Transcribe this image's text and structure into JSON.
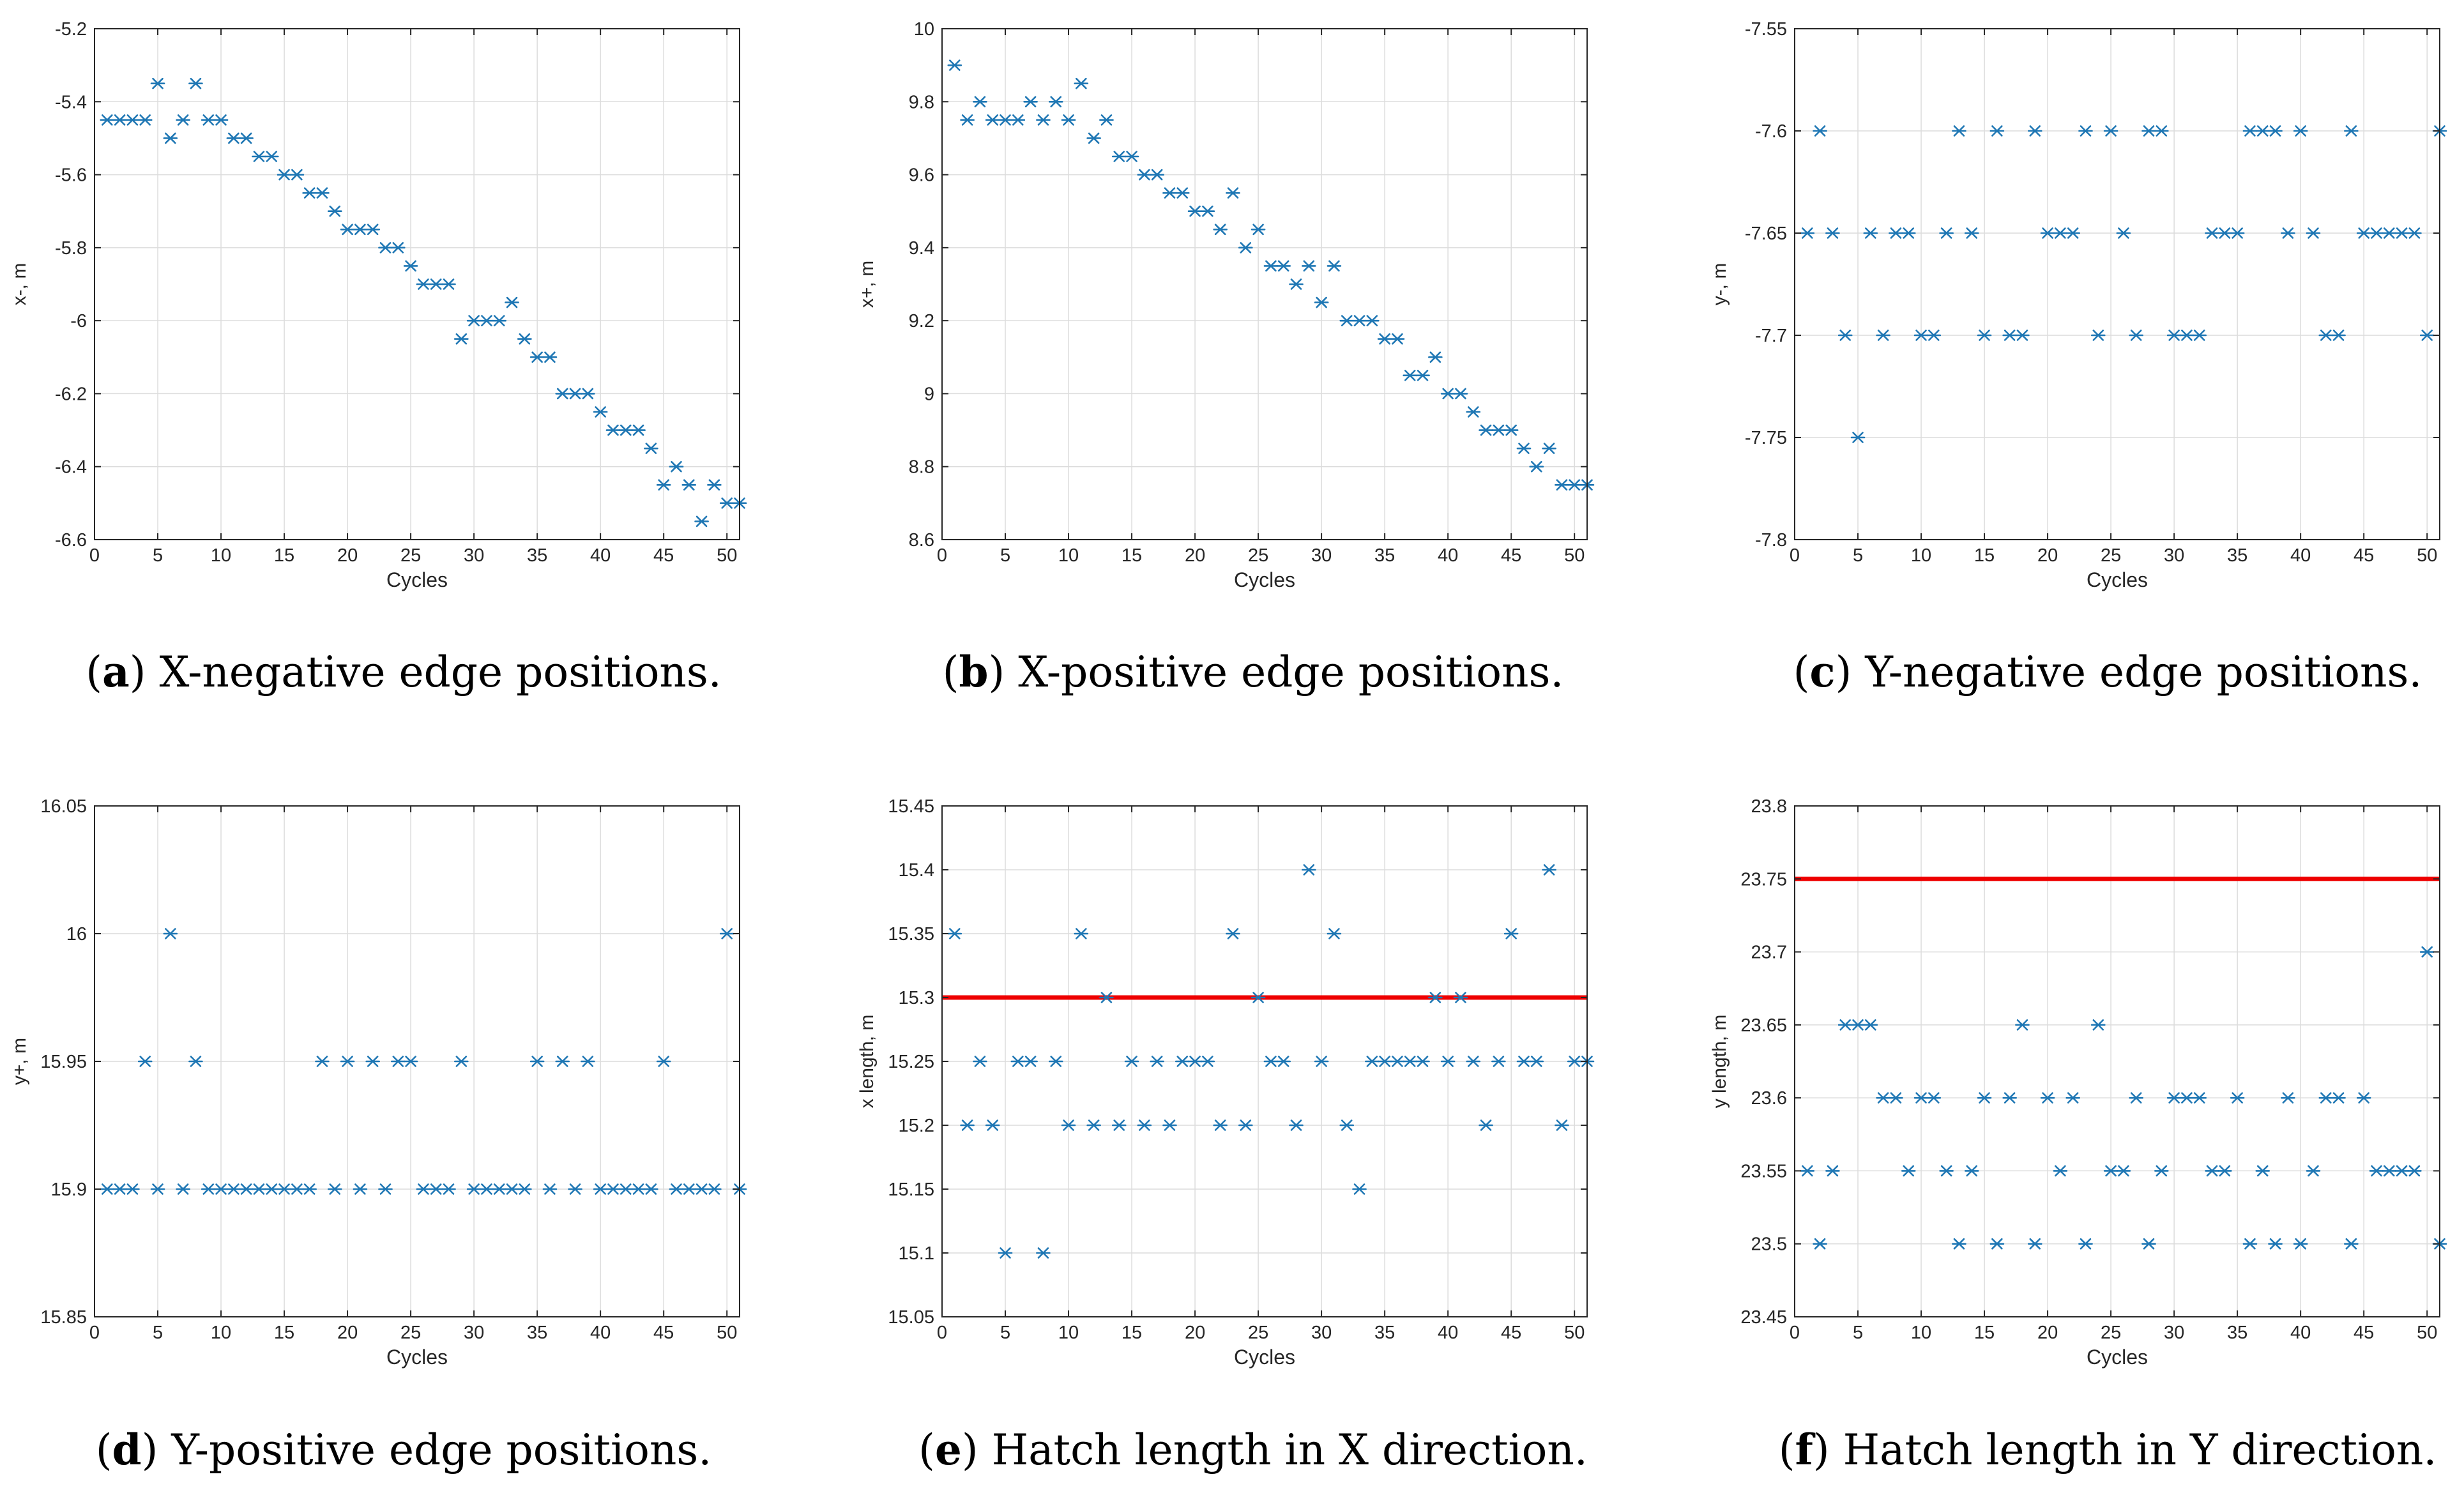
{
  "figure": {
    "colors": {
      "marker": "#1f77b4",
      "ref_line": "#ee0000",
      "grid": "#dcdcdc",
      "axes": "#262626",
      "background": "#ffffff"
    },
    "marker_symbol": "asterisk"
  },
  "chart_data": [
    {
      "type": "scatter",
      "panel": "a",
      "caption_letter": "a",
      "caption_text": ") X-negative edge positions.",
      "caption_open": "(",
      "xlabel": "Cycles",
      "ylabel": "x-, m",
      "xlim": [
        0,
        51
      ],
      "ylim": [
        -6.6,
        -5.2
      ],
      "xticks": [
        0,
        5,
        10,
        15,
        20,
        25,
        30,
        35,
        40,
        45,
        50
      ],
      "yticks": [
        -6.6,
        -6.4,
        -6.2,
        -6,
        -5.8,
        -5.6,
        -5.4,
        -5.2
      ],
      "yticklabels": [
        "-6.6",
        "-6.4",
        "-6.2",
        "-6",
        "-5.8",
        "-5.6",
        "-5.4",
        "-5.2"
      ],
      "x": [
        1,
        2,
        3,
        4,
        5,
        6,
        7,
        8,
        9,
        10,
        11,
        12,
        13,
        14,
        15,
        16,
        17,
        18,
        19,
        20,
        21,
        22,
        23,
        24,
        25,
        26,
        27,
        28,
        29,
        30,
        31,
        32,
        33,
        34,
        35,
        36,
        37,
        38,
        39,
        40,
        41,
        42,
        43,
        44,
        45,
        46,
        47,
        48,
        49,
        50,
        51
      ],
      "y": [
        -5.45,
        -5.45,
        -5.45,
        -5.45,
        -5.35,
        -5.5,
        -5.45,
        -5.35,
        -5.45,
        -5.45,
        -5.5,
        -5.5,
        -5.55,
        -5.55,
        -5.6,
        -5.6,
        -5.65,
        -5.65,
        -5.7,
        -5.75,
        -5.75,
        -5.75,
        -5.8,
        -5.8,
        -5.85,
        -5.9,
        -5.9,
        -5.9,
        -6.05,
        -6.0,
        -6.0,
        -6.0,
        -5.95,
        -6.05,
        -6.1,
        -6.1,
        -6.2,
        -6.2,
        -6.2,
        -6.25,
        -6.3,
        -6.3,
        -6.3,
        -6.35,
        -6.45,
        -6.4,
        -6.45,
        -6.55,
        -6.45,
        -6.5,
        -6.5
      ],
      "reference_line": null
    },
    {
      "type": "scatter",
      "panel": "b",
      "caption_letter": "b",
      "caption_text": ") X-positive edge positions.",
      "caption_open": "(",
      "xlabel": "Cycles",
      "ylabel": "x+, m",
      "xlim": [
        0,
        51
      ],
      "ylim": [
        8.6,
        10
      ],
      "xticks": [
        0,
        5,
        10,
        15,
        20,
        25,
        30,
        35,
        40,
        45,
        50
      ],
      "yticks": [
        8.6,
        8.8,
        9,
        9.2,
        9.4,
        9.6,
        9.8,
        10
      ],
      "yticklabels": [
        "8.6",
        "8.8",
        "9",
        "9.2",
        "9.4",
        "9.6",
        "9.8",
        "10"
      ],
      "x": [
        1,
        2,
        3,
        4,
        5,
        6,
        7,
        8,
        9,
        10,
        11,
        12,
        13,
        14,
        15,
        16,
        17,
        18,
        19,
        20,
        21,
        22,
        23,
        24,
        25,
        26,
        27,
        28,
        29,
        30,
        31,
        32,
        33,
        34,
        35,
        36,
        37,
        38,
        39,
        40,
        41,
        42,
        43,
        44,
        45,
        46,
        47,
        48,
        49,
        50,
        51
      ],
      "y": [
        9.9,
        9.75,
        9.8,
        9.75,
        9.75,
        9.75,
        9.8,
        9.75,
        9.8,
        9.75,
        9.85,
        9.7,
        9.75,
        9.65,
        9.65,
        9.6,
        9.6,
        9.55,
        9.55,
        9.5,
        9.5,
        9.45,
        9.55,
        9.4,
        9.45,
        9.35,
        9.35,
        9.3,
        9.35,
        9.25,
        9.35,
        9.2,
        9.2,
        9.2,
        9.15,
        9.15,
        9.05,
        9.05,
        9.1,
        9.0,
        9.0,
        8.95,
        8.9,
        8.9,
        8.9,
        8.85,
        8.8,
        8.85,
        8.75,
        8.75,
        8.75
      ],
      "reference_line": null
    },
    {
      "type": "scatter",
      "panel": "c",
      "caption_letter": "c",
      "caption_text": ") Y-negative edge positions.",
      "caption_open": "(",
      "xlabel": "Cycles",
      "ylabel": "y-, m",
      "xlim": [
        0,
        51
      ],
      "ylim": [
        -7.8,
        -7.55
      ],
      "xticks": [
        0,
        5,
        10,
        15,
        20,
        25,
        30,
        35,
        40,
        45,
        50
      ],
      "yticks": [
        -7.8,
        -7.75,
        -7.7,
        -7.65,
        -7.6,
        -7.55
      ],
      "yticklabels": [
        "-7.8",
        "-7.75",
        "-7.7",
        "-7.65",
        "-7.6",
        "-7.55"
      ],
      "x": [
        1,
        2,
        3,
        4,
        5,
        6,
        7,
        8,
        9,
        10,
        11,
        12,
        13,
        14,
        15,
        16,
        17,
        18,
        19,
        20,
        21,
        22,
        23,
        24,
        25,
        26,
        27,
        28,
        29,
        30,
        31,
        32,
        33,
        34,
        35,
        36,
        37,
        38,
        39,
        40,
        41,
        42,
        43,
        44,
        45,
        46,
        47,
        48,
        49,
        50,
        51
      ],
      "y": [
        -7.65,
        -7.6,
        -7.65,
        -7.7,
        -7.75,
        -7.65,
        -7.7,
        -7.65,
        -7.65,
        -7.7,
        -7.7,
        -7.65,
        -7.6,
        -7.65,
        -7.7,
        -7.6,
        -7.7,
        -7.7,
        -7.6,
        -7.65,
        -7.65,
        -7.65,
        -7.6,
        -7.7,
        -7.6,
        -7.65,
        -7.7,
        -7.6,
        -7.6,
        -7.7,
        -7.7,
        -7.7,
        -7.65,
        -7.65,
        -7.65,
        -7.6,
        -7.6,
        -7.6,
        -7.65,
        -7.6,
        -7.65,
        -7.7,
        -7.7,
        -7.6,
        -7.65,
        -7.65,
        -7.65,
        -7.65,
        -7.65,
        -7.7,
        -7.6
      ],
      "reference_line": null
    },
    {
      "type": "scatter",
      "panel": "d",
      "caption_letter": "d",
      "caption_text": ") Y-positive edge positions.",
      "caption_open": "(",
      "xlabel": "Cycles",
      "ylabel": "y+, m",
      "xlim": [
        0,
        51
      ],
      "ylim": [
        15.85,
        16.05
      ],
      "xticks": [
        0,
        5,
        10,
        15,
        20,
        25,
        30,
        35,
        40,
        45,
        50
      ],
      "yticks": [
        15.85,
        15.9,
        15.95,
        16,
        16.05
      ],
      "yticklabels": [
        "15.85",
        "15.9",
        "15.95",
        "16",
        "16.05"
      ],
      "x": [
        1,
        2,
        3,
        4,
        5,
        6,
        7,
        8,
        9,
        10,
        11,
        12,
        13,
        14,
        15,
        16,
        17,
        18,
        19,
        20,
        21,
        22,
        23,
        24,
        25,
        26,
        27,
        28,
        29,
        30,
        31,
        32,
        33,
        34,
        35,
        36,
        37,
        38,
        39,
        40,
        41,
        42,
        43,
        44,
        45,
        46,
        47,
        48,
        49,
        50,
        51
      ],
      "y": [
        15.9,
        15.9,
        15.9,
        15.95,
        15.9,
        16.0,
        15.9,
        15.95,
        15.9,
        15.9,
        15.9,
        15.9,
        15.9,
        15.9,
        15.9,
        15.9,
        15.9,
        15.95,
        15.9,
        15.95,
        15.9,
        15.95,
        15.9,
        15.95,
        15.95,
        15.9,
        15.9,
        15.9,
        15.95,
        15.9,
        15.9,
        15.9,
        15.9,
        15.9,
        15.95,
        15.9,
        15.95,
        15.9,
        15.95,
        15.9,
        15.9,
        15.9,
        15.9,
        15.9,
        15.95,
        15.9,
        15.9,
        15.9,
        15.9,
        16.0,
        15.9
      ],
      "reference_line": null
    },
    {
      "type": "scatter",
      "panel": "e",
      "caption_letter": "e",
      "caption_text": ") Hatch length in X direction.",
      "caption_open": "(",
      "xlabel": "Cycles",
      "ylabel": "x length, m",
      "xlim": [
        0,
        51
      ],
      "ylim": [
        15.05,
        15.45
      ],
      "xticks": [
        0,
        5,
        10,
        15,
        20,
        25,
        30,
        35,
        40,
        45,
        50
      ],
      "yticks": [
        15.05,
        15.1,
        15.15,
        15.2,
        15.25,
        15.3,
        15.35,
        15.4,
        15.45
      ],
      "yticklabels": [
        "15.05",
        "15.1",
        "15.15",
        "15.2",
        "15.25",
        "15.3",
        "15.35",
        "15.4",
        "15.45"
      ],
      "x": [
        1,
        2,
        3,
        4,
        5,
        6,
        7,
        8,
        9,
        10,
        11,
        12,
        13,
        14,
        15,
        16,
        17,
        18,
        19,
        20,
        21,
        22,
        23,
        24,
        25,
        26,
        27,
        28,
        29,
        30,
        31,
        32,
        33,
        34,
        35,
        36,
        37,
        38,
        39,
        40,
        41,
        42,
        43,
        44,
        45,
        46,
        47,
        48,
        49,
        50,
        51
      ],
      "y": [
        15.35,
        15.2,
        15.25,
        15.2,
        15.1,
        15.25,
        15.25,
        15.1,
        15.25,
        15.2,
        15.35,
        15.2,
        15.3,
        15.2,
        15.25,
        15.2,
        15.25,
        15.2,
        15.25,
        15.25,
        15.25,
        15.2,
        15.35,
        15.2,
        15.3,
        15.25,
        15.25,
        15.2,
        15.4,
        15.25,
        15.35,
        15.2,
        15.15,
        15.25,
        15.25,
        15.25,
        15.25,
        15.25,
        15.3,
        15.25,
        15.3,
        15.25,
        15.2,
        15.25,
        15.35,
        15.25,
        15.25,
        15.4,
        15.2,
        15.25,
        15.25
      ],
      "reference_line": 15.3
    },
    {
      "type": "scatter",
      "panel": "f",
      "caption_letter": "f",
      "caption_text": ") Hatch length in Y direction.",
      "caption_open": "(",
      "xlabel": "Cycles",
      "ylabel": "y length, m",
      "xlim": [
        0,
        51
      ],
      "ylim": [
        23.45,
        23.8
      ],
      "xticks": [
        0,
        5,
        10,
        15,
        20,
        25,
        30,
        35,
        40,
        45,
        50
      ],
      "yticks": [
        23.45,
        23.5,
        23.55,
        23.6,
        23.65,
        23.7,
        23.75,
        23.8
      ],
      "yticklabels": [
        "23.45",
        "23.5",
        "23.55",
        "23.6",
        "23.65",
        "23.7",
        "23.75",
        "23.8"
      ],
      "x": [
        1,
        2,
        3,
        4,
        5,
        6,
        7,
        8,
        9,
        10,
        11,
        12,
        13,
        14,
        15,
        16,
        17,
        18,
        19,
        20,
        21,
        22,
        23,
        24,
        25,
        26,
        27,
        28,
        29,
        30,
        31,
        32,
        33,
        34,
        35,
        36,
        37,
        38,
        39,
        40,
        41,
        42,
        43,
        44,
        45,
        46,
        47,
        48,
        49,
        50,
        51
      ],
      "y": [
        23.55,
        23.5,
        23.55,
        23.65,
        23.65,
        23.65,
        23.6,
        23.6,
        23.55,
        23.6,
        23.6,
        23.55,
        23.5,
        23.55,
        23.6,
        23.5,
        23.6,
        23.65,
        23.5,
        23.6,
        23.55,
        23.6,
        23.5,
        23.65,
        23.55,
        23.55,
        23.6,
        23.5,
        23.55,
        23.6,
        23.6,
        23.6,
        23.55,
        23.55,
        23.6,
        23.5,
        23.55,
        23.5,
        23.6,
        23.5,
        23.55,
        23.6,
        23.6,
        23.5,
        23.6,
        23.55,
        23.55,
        23.55,
        23.55,
        23.7,
        23.5
      ],
      "reference_line": 23.75
    }
  ]
}
